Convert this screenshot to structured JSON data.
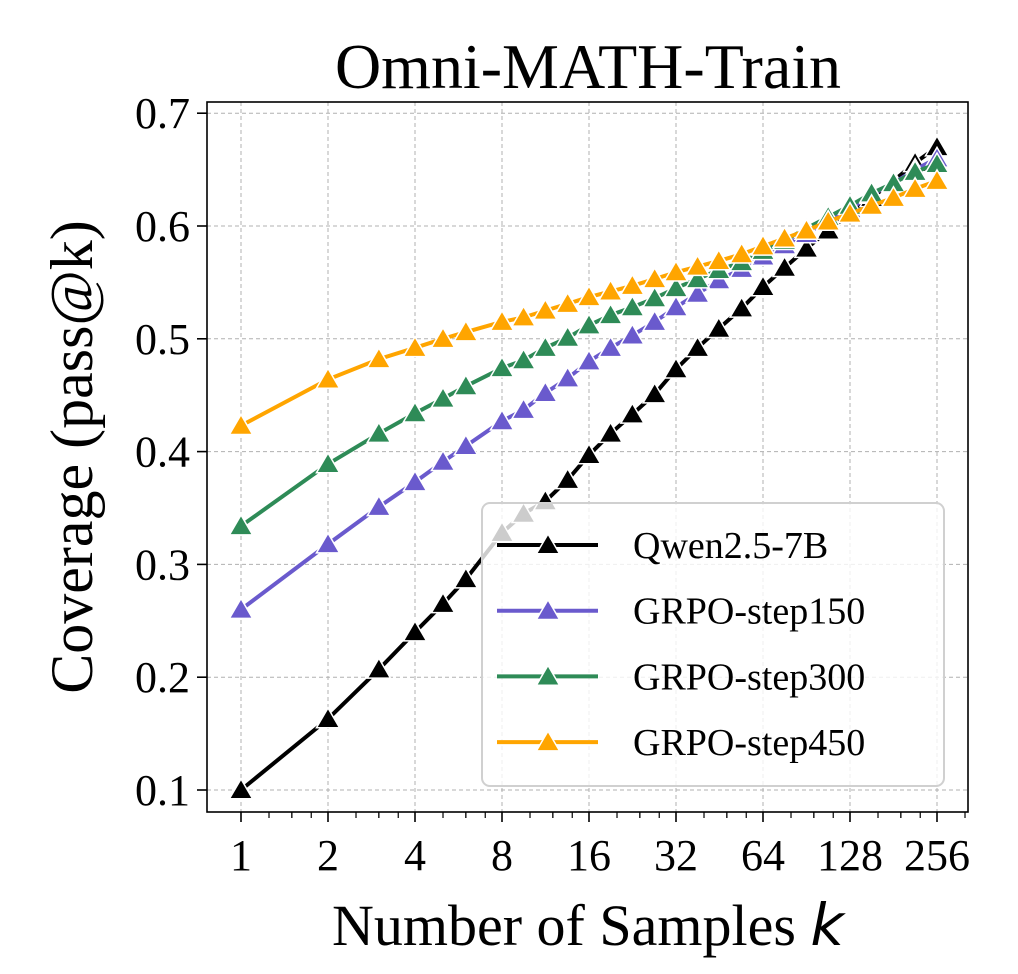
{
  "chart_data": {
    "type": "line",
    "title": "Omni-MATH-Train",
    "xlabel": "Number of Samples ",
    "xlabel_var": "k",
    "ylabel": "Coverage (pass@k)",
    "xscale": "log2",
    "xlim": [
      0.8,
      320
    ],
    "ylim": [
      0.08,
      0.71
    ],
    "grid": true,
    "legend_position": "lower-right",
    "x_ticks": [
      1,
      2,
      4,
      8,
      16,
      32,
      64,
      128,
      256
    ],
    "x_tick_labels": [
      "1",
      "2",
      "4",
      "8",
      "16",
      "32",
      "64",
      "128",
      "256"
    ],
    "y_ticks": [
      0.1,
      0.2,
      0.3,
      0.4,
      0.5,
      0.6,
      0.7
    ],
    "y_tick_labels": [
      "0.1",
      "0.2",
      "0.3",
      "0.4",
      "0.5",
      "0.6",
      "0.7"
    ],
    "x": [
      1,
      2,
      3,
      4,
      5,
      6,
      8,
      9.5,
      11.3,
      13.5,
      16,
      19,
      22.6,
      27,
      32,
      38,
      45,
      54,
      64,
      76,
      90.5,
      107.6,
      128,
      152,
      181,
      215,
      256
    ],
    "series": [
      {
        "name": "Qwen2.5-7B",
        "color": "#000000",
        "values": [
          0.1,
          0.163,
          0.207,
          0.24,
          0.265,
          0.287,
          0.328,
          0.345,
          0.356,
          0.375,
          0.397,
          0.416,
          0.433,
          0.451,
          0.473,
          0.492,
          0.509,
          0.527,
          0.546,
          0.563,
          0.58,
          0.596,
          0.611,
          0.625,
          0.64,
          0.656,
          0.67
        ]
      },
      {
        "name": "GRPO-step150",
        "color": "#6a5acd",
        "values": [
          0.26,
          0.318,
          0.351,
          0.373,
          0.391,
          0.405,
          0.427,
          0.437,
          0.452,
          0.465,
          0.48,
          0.492,
          0.503,
          0.515,
          0.528,
          0.54,
          0.552,
          0.562,
          0.573,
          0.583,
          0.593,
          0.605,
          0.615,
          0.628,
          0.638,
          0.65,
          0.66
        ]
      },
      {
        "name": "GRPO-step300",
        "color": "#2e8b57",
        "values": [
          0.334,
          0.389,
          0.416,
          0.434,
          0.447,
          0.458,
          0.474,
          0.481,
          0.492,
          0.501,
          0.512,
          0.521,
          0.528,
          0.536,
          0.545,
          0.553,
          0.561,
          0.568,
          0.578,
          0.587,
          0.598,
          0.608,
          0.618,
          0.629,
          0.638,
          0.648,
          0.655
        ]
      },
      {
        "name": "GRPO-step450",
        "color": "#ffa500",
        "values": [
          0.423,
          0.464,
          0.482,
          0.492,
          0.5,
          0.506,
          0.515,
          0.519,
          0.525,
          0.531,
          0.537,
          0.542,
          0.547,
          0.553,
          0.559,
          0.564,
          0.569,
          0.575,
          0.582,
          0.589,
          0.596,
          0.604,
          0.611,
          0.618,
          0.625,
          0.633,
          0.64
        ]
      }
    ]
  }
}
